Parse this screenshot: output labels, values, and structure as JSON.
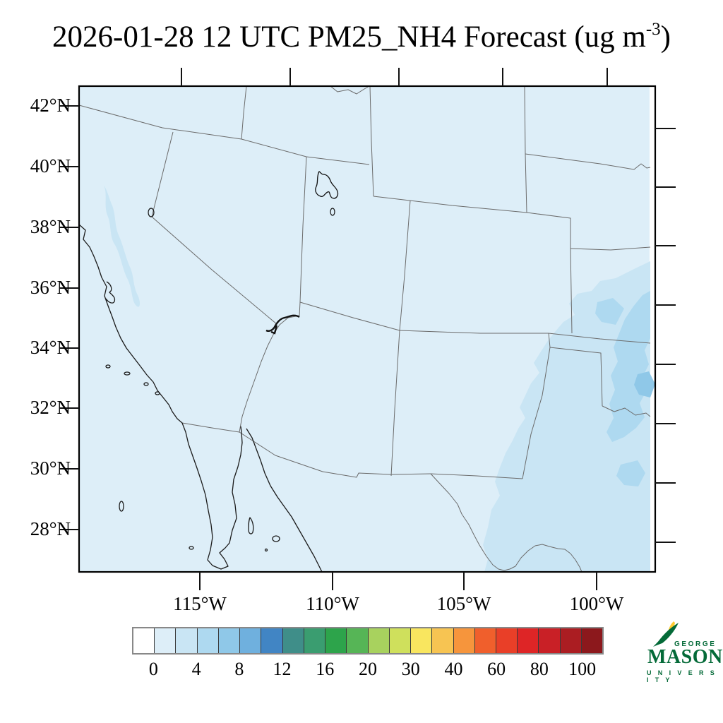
{
  "title": {
    "prefix": "2026-01-28 12 UTC PM25_NH4 Forecast (ug m",
    "superscript": "-3",
    "suffix": ")"
  },
  "map": {
    "lat_labels": [
      "42°N",
      "40°N",
      "38°N",
      "36°N",
      "34°N",
      "32°N",
      "30°N",
      "28°N"
    ],
    "lon_labels": [
      "115°W",
      "110°W",
      "105°W",
      "100°W"
    ],
    "base_fill": "#ddeef8",
    "shade_level_2_4": "#c9e5f4",
    "shade_level_4_6": "#aed9f0",
    "shade_level_6_8": "#8fc8e8",
    "shade_below_min": "#ffffff",
    "border_color": "#6b6b6b",
    "coast_color": "#1b1b1b"
  },
  "colorbar": {
    "tick_labels": [
      "0",
      "4",
      "8",
      "12",
      "16",
      "20",
      "30",
      "40",
      "60",
      "80",
      "100"
    ],
    "tick_values": [
      0,
      4,
      8,
      12,
      16,
      20,
      30,
      40,
      60,
      80,
      100
    ],
    "all_boundaries": [
      0,
      2,
      4,
      6,
      8,
      10,
      12,
      14,
      16,
      18,
      20,
      25,
      30,
      35,
      40,
      50,
      60,
      70,
      80,
      90,
      100
    ],
    "units": "ug m-3",
    "colors": [
      "#ffffff",
      "#ddeef8",
      "#c9e5f4",
      "#aed9f0",
      "#8fc8e8",
      "#6fb0de",
      "#4185c4",
      "#3f8e89",
      "#3a9d70",
      "#2da44b",
      "#56b556",
      "#a8d25e",
      "#cfe05c",
      "#f9e65f",
      "#f7c452",
      "#f6953c",
      "#f05f2c",
      "#e93f28",
      "#de2526",
      "#c92026",
      "#ab1d22",
      "#8c181c"
    ]
  },
  "logo": {
    "george": "GEORGE",
    "mason": "MASON",
    "university": "U N I V E R S I T Y",
    "green": "#046A38",
    "gold": "#FFCC33"
  }
}
